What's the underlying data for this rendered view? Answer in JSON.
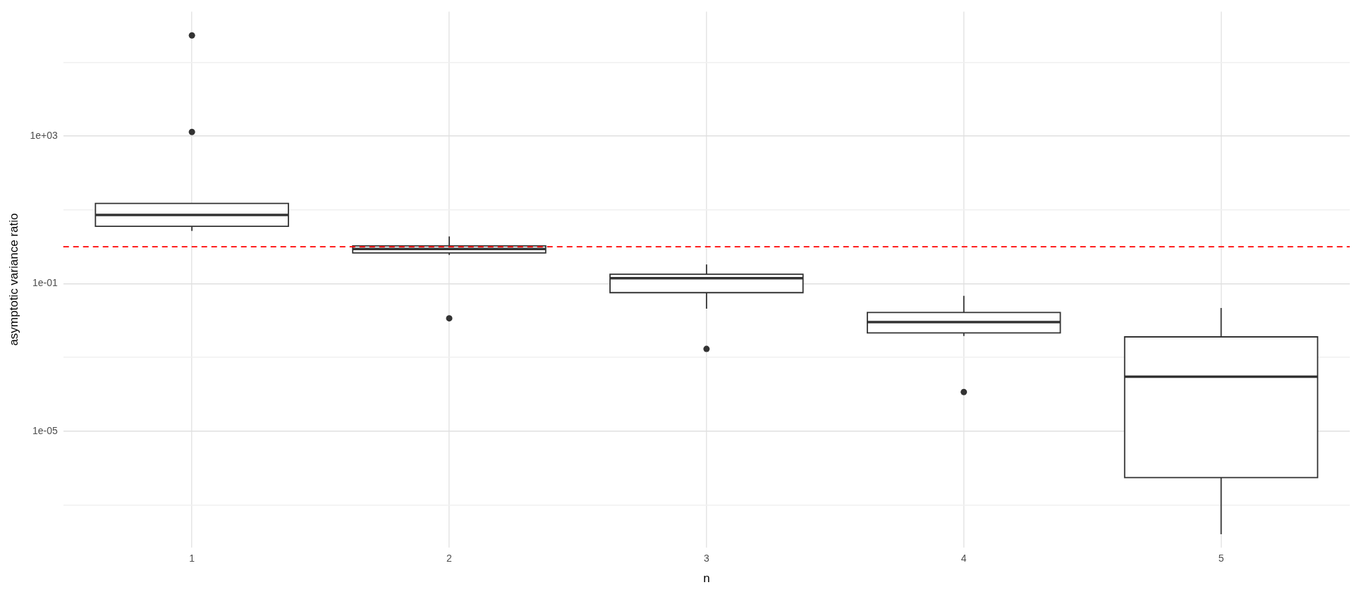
{
  "chart_data": {
    "type": "box",
    "xlabel": "n",
    "ylabel": "asymptotic variance ratio",
    "categories": [
      "1",
      "2",
      "3",
      "4",
      "5"
    ],
    "boxes": [
      {
        "low": 2.7,
        "q1": 3.6,
        "median": 7.3,
        "q3": 15,
        "high": 15,
        "outliers": [
          1300,
          540000
        ]
      },
      {
        "low": 0.6,
        "q1": 0.68,
        "median": 0.87,
        "q3": 1.06,
        "high": 1.9,
        "outliers": [
          0.0115
        ]
      },
      {
        "low": 0.021,
        "q1": 0.057,
        "median": 0.14,
        "q3": 0.18,
        "high": 0.33,
        "outliers": [
          0.0017
        ]
      },
      {
        "low": 0.0038,
        "q1": 0.0046,
        "median": 0.0091,
        "q3": 0.0165,
        "high": 0.047,
        "outliers": [
          0.000115
        ]
      },
      {
        "low": 1.6e-08,
        "q1": 5.5e-07,
        "median": 0.0003,
        "q3": 0.0036,
        "high": 0.022
      }
    ],
    "log": true,
    "ylim": [
      7e-09,
      2400000.0
    ],
    "yticks": [
      {
        "value": 1e-07,
        "label": null
      },
      {
        "value": 1e-05,
        "label": "1e-05"
      },
      {
        "value": 0.001,
        "label": null
      },
      {
        "value": 0.1,
        "label": "1e-01"
      },
      {
        "value": 10,
        "label": null
      },
      {
        "value": 1000,
        "label": "1e+03"
      },
      {
        "value": 100000,
        "label": null
      }
    ],
    "grid": true,
    "ref_lines": [
      {
        "axis": "y",
        "value": 1,
        "color": "#ff0000",
        "line_style": "dashed"
      }
    ]
  }
}
